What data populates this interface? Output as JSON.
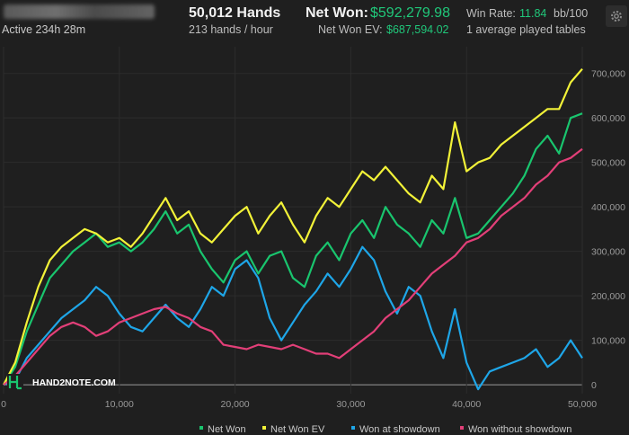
{
  "header": {
    "active": "Active 234h 28m",
    "hands": "50,012 Hands",
    "hands_per_hour": "213 hands / hour",
    "net_won_label": "Net Won:",
    "net_won_value": "$592,279.98",
    "net_won_ev_label": "Net Won  EV:",
    "net_won_ev_value": "$687,594.02",
    "win_rate_label": "Win Rate:",
    "win_rate_value": "11.84",
    "win_rate_unit": "bb/100",
    "tables": "1 average played tables"
  },
  "icons": {
    "settings": "gear-icon",
    "logo": "hand2note-logo-icon"
  },
  "watermark": "HAND2NOTE.COM",
  "colors": {
    "background": "#1f1f1f",
    "net_won": "#19c56e",
    "net_won_ev": "#f2f238",
    "won_at_showdown": "#1ea6e8",
    "won_without_showdown": "#e23f78"
  },
  "chart_data": {
    "type": "line",
    "xlim": [
      0,
      50000
    ],
    "ylim": [
      -20000,
      760000
    ],
    "x_ticks": [
      "0",
      "10,000",
      "20,000",
      "30,000",
      "40,000",
      "50,000"
    ],
    "y_ticks": [
      "0",
      "100,000",
      "200,000",
      "300,000",
      "400,000",
      "500,000",
      "600,000",
      "700,000"
    ],
    "grid": true,
    "legend_position": "bottom",
    "x": [
      0,
      1000,
      2000,
      3000,
      4000,
      5000,
      6000,
      7000,
      8000,
      9000,
      10000,
      11000,
      12000,
      13000,
      14000,
      15000,
      16000,
      17000,
      18000,
      19000,
      20000,
      21000,
      22000,
      23000,
      24000,
      25000,
      26000,
      27000,
      28000,
      29000,
      30000,
      31000,
      32000,
      33000,
      34000,
      35000,
      36000,
      37000,
      38000,
      39000,
      40000,
      41000,
      42000,
      43000,
      44000,
      45000,
      46000,
      47000,
      48000,
      49000,
      50000
    ],
    "series": [
      {
        "name": "Net Won",
        "key": "net_won",
        "values": [
          0,
          40000,
          120000,
          180000,
          240000,
          270000,
          300000,
          320000,
          340000,
          310000,
          320000,
          300000,
          320000,
          350000,
          390000,
          340000,
          360000,
          300000,
          260000,
          230000,
          280000,
          300000,
          250000,
          290000,
          300000,
          240000,
          220000,
          290000,
          320000,
          280000,
          340000,
          370000,
          330000,
          400000,
          360000,
          340000,
          310000,
          370000,
          340000,
          420000,
          330000,
          340000,
          370000,
          400000,
          430000,
          470000,
          530000,
          560000,
          520000,
          600000,
          610000
        ]
      },
      {
        "name": "Net Won  EV",
        "key": "net_won_ev",
        "values": [
          0,
          50000,
          140000,
          220000,
          280000,
          310000,
          330000,
          350000,
          340000,
          320000,
          330000,
          310000,
          340000,
          380000,
          420000,
          370000,
          390000,
          340000,
          320000,
          350000,
          380000,
          400000,
          340000,
          380000,
          410000,
          360000,
          320000,
          380000,
          420000,
          400000,
          440000,
          480000,
          460000,
          490000,
          460000,
          430000,
          410000,
          470000,
          440000,
          590000,
          480000,
          500000,
          510000,
          540000,
          560000,
          580000,
          600000,
          620000,
          620000,
          680000,
          710000
        ]
      },
      {
        "name": "Won at showdown",
        "key": "won_at_showdown",
        "values": [
          0,
          10000,
          60000,
          90000,
          120000,
          150000,
          170000,
          190000,
          220000,
          200000,
          160000,
          130000,
          120000,
          150000,
          180000,
          150000,
          130000,
          170000,
          220000,
          200000,
          260000,
          280000,
          240000,
          150000,
          100000,
          140000,
          180000,
          210000,
          250000,
          220000,
          260000,
          310000,
          280000,
          210000,
          160000,
          220000,
          200000,
          120000,
          60000,
          170000,
          50000,
          -10000,
          30000,
          40000,
          50000,
          60000,
          80000,
          40000,
          60000,
          100000,
          60000
        ]
      },
      {
        "name": "Won without showdown",
        "key": "won_without_showdown",
        "values": [
          0,
          20000,
          50000,
          80000,
          110000,
          130000,
          140000,
          130000,
          110000,
          120000,
          140000,
          150000,
          160000,
          170000,
          175000,
          160000,
          150000,
          130000,
          120000,
          90000,
          85000,
          80000,
          90000,
          85000,
          80000,
          90000,
          80000,
          70000,
          70000,
          60000,
          80000,
          100000,
          120000,
          150000,
          170000,
          190000,
          220000,
          250000,
          270000,
          290000,
          320000,
          330000,
          350000,
          380000,
          400000,
          420000,
          450000,
          470000,
          500000,
          510000,
          530000
        ]
      }
    ]
  }
}
